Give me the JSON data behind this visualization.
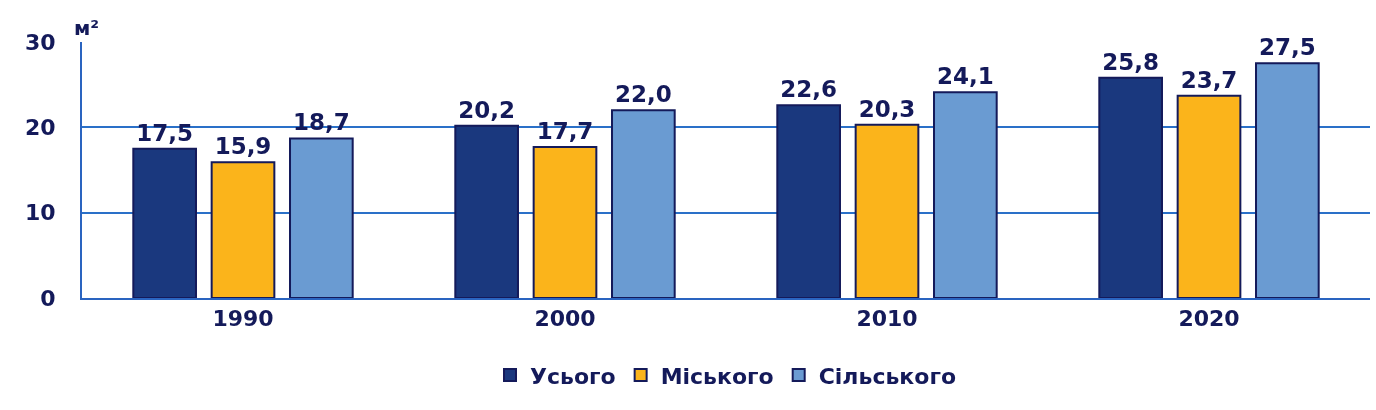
{
  "chart_data": {
    "type": "bar",
    "ylabel": "м²",
    "categories": [
      "1990",
      "2000",
      "2010",
      "2020"
    ],
    "series": [
      {
        "name": "Усього",
        "color": "#1a387e",
        "values": [
          17.5,
          20.2,
          22.6,
          25.8
        ],
        "value_labels": [
          "17,5",
          "20,2",
          "22,6",
          "25,8"
        ]
      },
      {
        "name": "Міського",
        "color": "#fbb41b",
        "values": [
          15.9,
          17.7,
          20.3,
          23.7
        ],
        "value_labels": [
          "15,9",
          "17,7",
          "20,3",
          "23,7"
        ]
      },
      {
        "name": "Сільського",
        "color": "#6a9bd2",
        "values": [
          18.7,
          22.0,
          24.1,
          27.5
        ],
        "value_labels": [
          "18,7",
          "22,0",
          "24,1",
          "27,5"
        ]
      }
    ],
    "ylim": [
      0,
      30
    ],
    "yticks": [
      0,
      10,
      20,
      30
    ],
    "grid": "y",
    "legend": "bottom"
  }
}
